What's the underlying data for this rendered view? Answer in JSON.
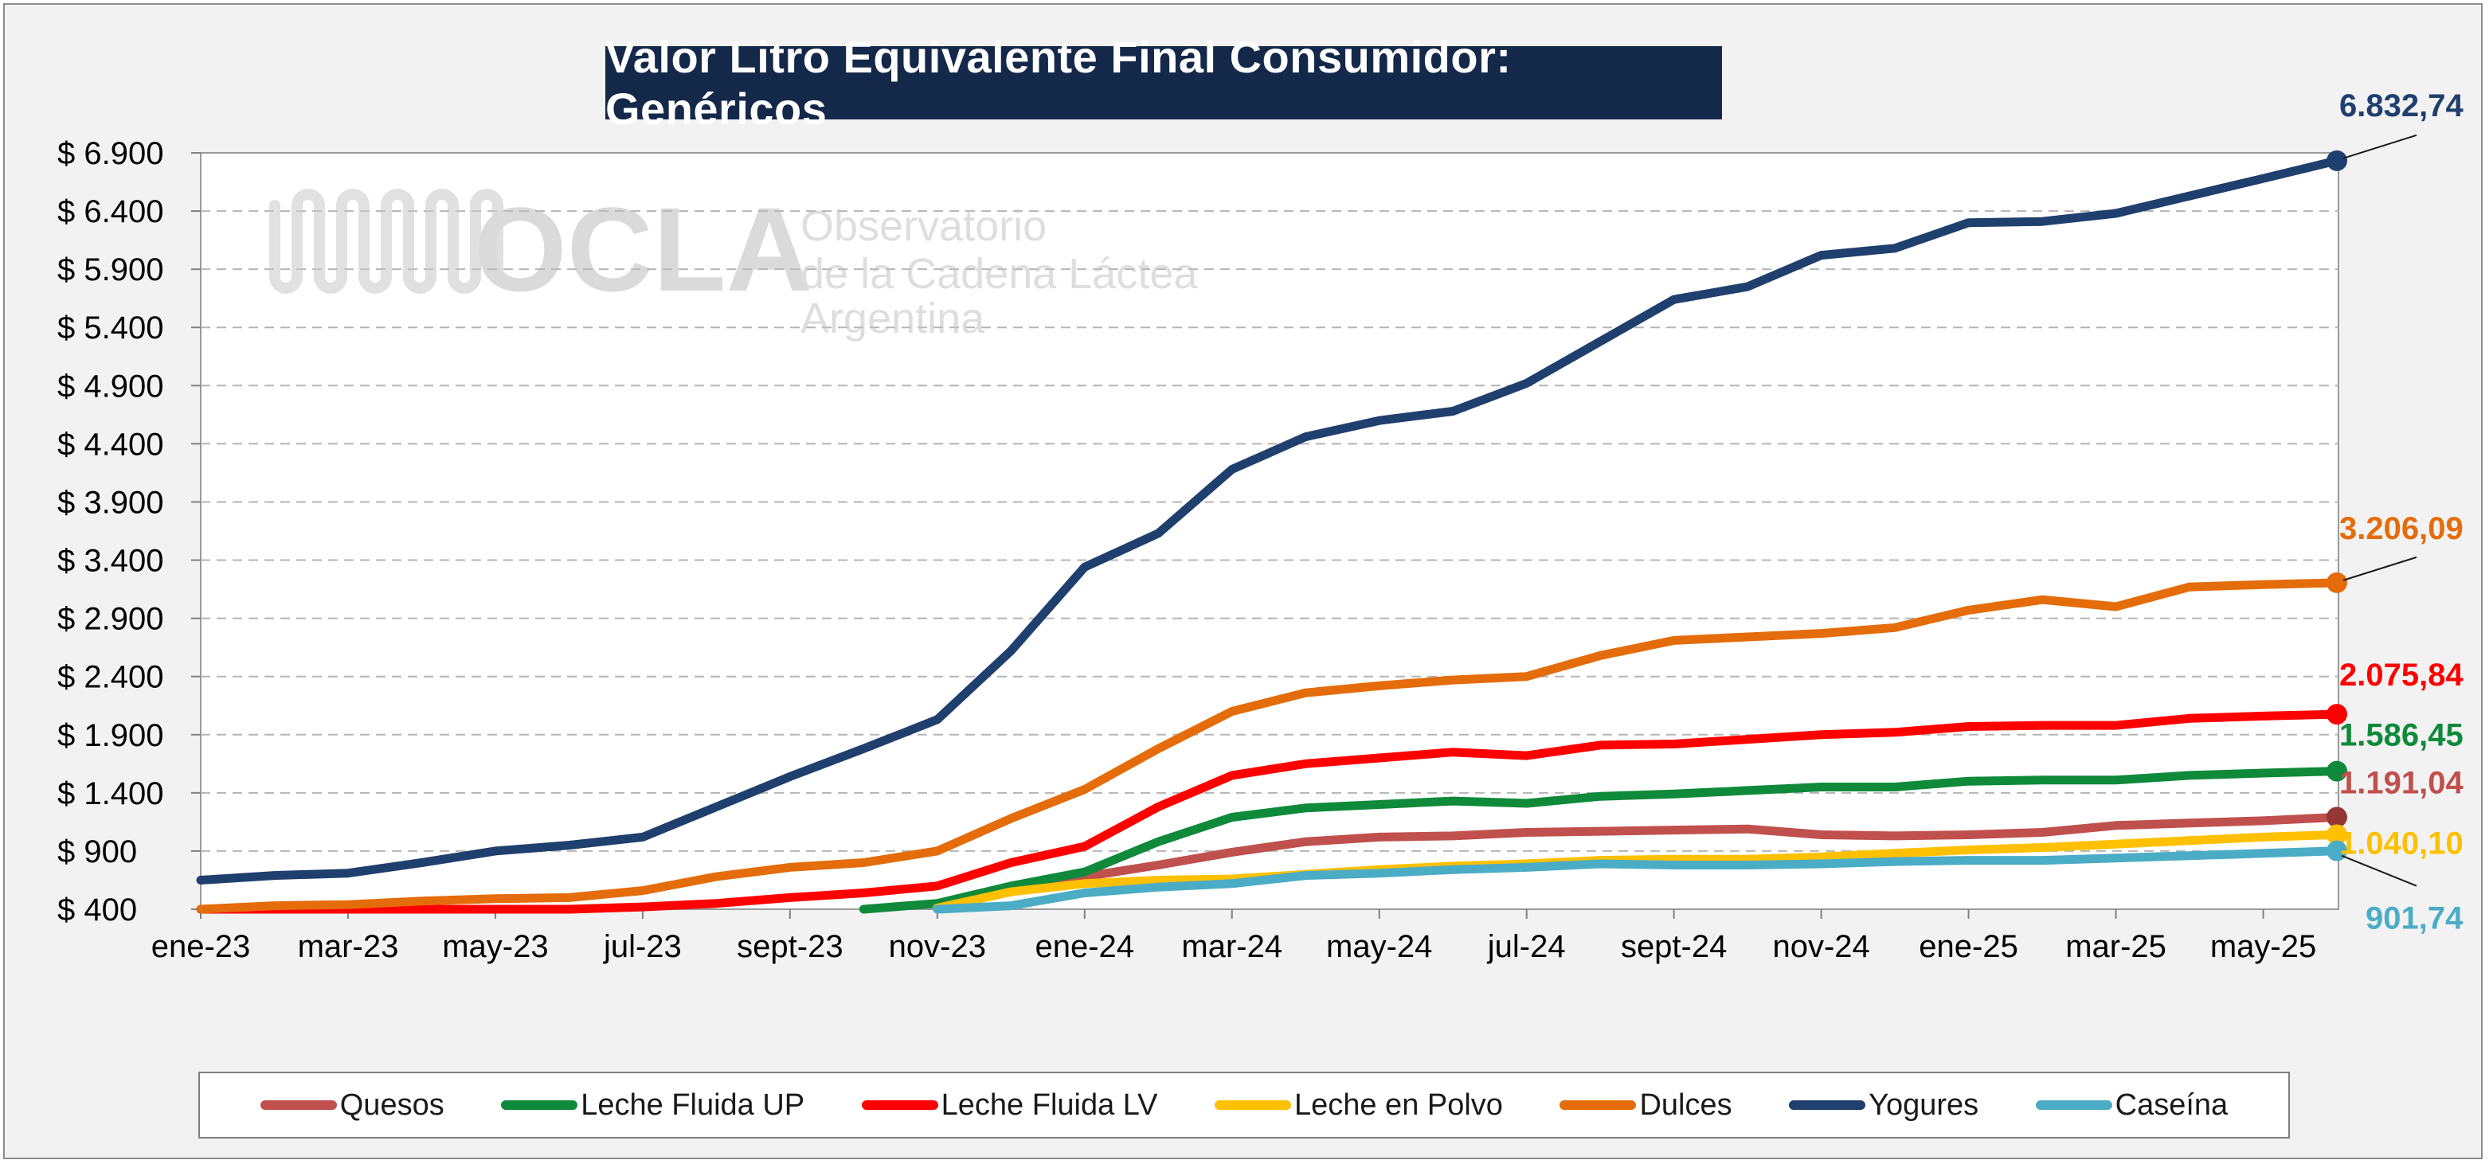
{
  "chart_data": {
    "type": "line",
    "title": "Valor Litro Equivalente Final Consumidor: Genéricos",
    "watermark": {
      "brand": "OCLA",
      "line1": "Observatorio",
      "line2": "de la Cadena Láctea",
      "line3": "Argentina"
    },
    "xlabel": "",
    "ylabel": "",
    "ylim": [
      400,
      6900
    ],
    "yticks": [
      400,
      900,
      1400,
      1900,
      2400,
      2900,
      3400,
      3900,
      4400,
      4900,
      5400,
      5900,
      6400,
      6900
    ],
    "ytick_labels": [
      "$ 400",
      "$ 900",
      "$ 1.400",
      "$ 1.900",
      "$ 2.400",
      "$ 2.900",
      "$ 3.400",
      "$ 3.900",
      "$ 4.400",
      "$ 4.900",
      "$ 5.400",
      "$ 5.900",
      "$ 6.400",
      "$ 6.900"
    ],
    "x": [
      "ene-23",
      "feb-23",
      "mar-23",
      "abr-23",
      "may-23",
      "jun-23",
      "jul-23",
      "ago-23",
      "sept-23",
      "oct-23",
      "nov-23",
      "dic-23",
      "ene-24",
      "feb-24",
      "mar-24",
      "abr-24",
      "may-24",
      "jun-24",
      "jul-24",
      "ago-24",
      "sept-24",
      "oct-24",
      "nov-24",
      "dic-24",
      "ene-25",
      "feb-25",
      "mar-25",
      "abr-25",
      "may-25",
      "jun-25"
    ],
    "xtick_labels": [
      "ene-23",
      "mar-23",
      "may-23",
      "jul-23",
      "sept-23",
      "nov-23",
      "ene-24",
      "mar-24",
      "may-24",
      "jul-24",
      "sept-24",
      "nov-24",
      "ene-25",
      "mar-25",
      "may-25"
    ],
    "grid": true,
    "legend_position": "bottom",
    "series": [
      {
        "name": "Quesos",
        "color": "#c0504d",
        "start_index": 10,
        "values": [
          null,
          null,
          null,
          null,
          null,
          null,
          null,
          null,
          null,
          null,
          440,
          550,
          680,
          780,
          890,
          980,
          1020,
          1030,
          1060,
          1070,
          1080,
          1090,
          1040,
          1030,
          1040,
          1060,
          1120,
          1140,
          1160,
          1191.04
        ],
        "end_label": "1.191,04"
      },
      {
        "name": "Leche Fluida UP",
        "color": "#0f8a3a",
        "start_index": 9,
        "values": [
          null,
          null,
          null,
          null,
          null,
          null,
          null,
          null,
          null,
          400,
          450,
          600,
          720,
          980,
          1190,
          1270,
          1300,
          1330,
          1310,
          1370,
          1390,
          1420,
          1450,
          1450,
          1500,
          1510,
          1510,
          1550,
          1570,
          1586.45
        ],
        "end_label": "1.586,45"
      },
      {
        "name": "Leche Fluida LV",
        "color": "#ff0000",
        "start_index": 0,
        "values": [
          400,
          400,
          400,
          400,
          400,
          400,
          420,
          450,
          500,
          540,
          600,
          800,
          940,
          1280,
          1550,
          1650,
          1700,
          1750,
          1720,
          1810,
          1820,
          1860,
          1900,
          1920,
          1970,
          1980,
          1980,
          2040,
          2060,
          2075.84
        ],
        "end_label": "2.075,84"
      },
      {
        "name": "Leche en Polvo",
        "color": "#ffc000",
        "start_index": 10,
        "values": [
          null,
          null,
          null,
          null,
          null,
          null,
          null,
          null,
          null,
          null,
          410,
          550,
          620,
          650,
          660,
          700,
          740,
          770,
          790,
          820,
          830,
          830,
          850,
          880,
          910,
          930,
          960,
          990,
          1020,
          1040.1
        ],
        "end_label": "1.040,10"
      },
      {
        "name": "Dulces",
        "color": "#e46c0a",
        "start_index": 0,
        "values": [
          400,
          430,
          440,
          470,
          490,
          500,
          560,
          680,
          760,
          800,
          900,
          1180,
          1430,
          1780,
          2100,
          2260,
          2320,
          2370,
          2400,
          2580,
          2710,
          2740,
          2770,
          2820,
          2970,
          3060,
          3000,
          3170,
          3190,
          3206.09
        ],
        "end_label": "3.206,09"
      },
      {
        "name": "Yogures",
        "color": "#1f3f6e",
        "start_index": 0,
        "values": [
          650,
          690,
          710,
          800,
          900,
          950,
          1020,
          1280,
          1540,
          1780,
          2030,
          2620,
          3340,
          3630,
          4180,
          4460,
          4600,
          4680,
          4920,
          5280,
          5640,
          5750,
          6020,
          6080,
          6300,
          6310,
          6380,
          6530,
          6680,
          6832.74
        ],
        "end_label": "6.832,74"
      },
      {
        "name": "Caseína",
        "color": "#4bacc6",
        "start_index": 10,
        "values": [
          null,
          null,
          null,
          null,
          null,
          null,
          null,
          null,
          null,
          null,
          400,
          430,
          540,
          590,
          620,
          690,
          710,
          740,
          760,
          790,
          780,
          780,
          790,
          810,
          820,
          820,
          840,
          860,
          880,
          901.74
        ],
        "end_label": "901,74"
      }
    ]
  }
}
